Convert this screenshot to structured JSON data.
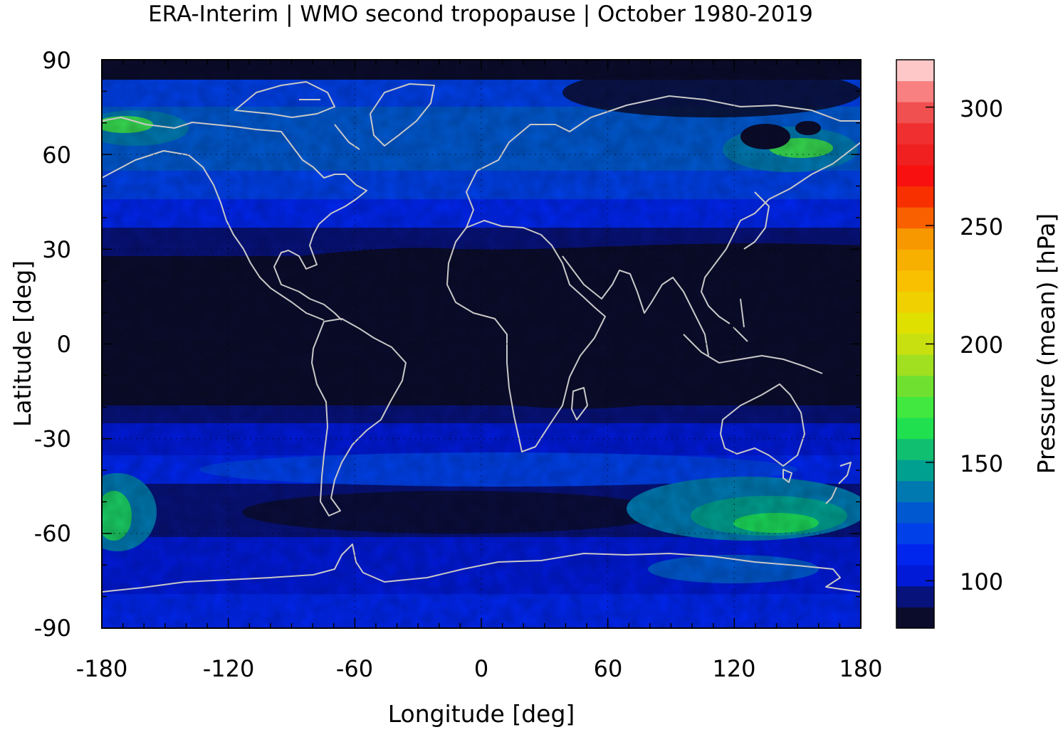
{
  "title": "ERA-Interim | WMO second tropopause | October 1980-2019",
  "map": {
    "xlabel": "Longitude [deg]",
    "ylabel": "Latitude [deg]",
    "xlim": [
      -180,
      180
    ],
    "ylim": [
      -90,
      90
    ],
    "xticks": [
      "-180",
      "-120",
      "-60",
      "0",
      "60",
      "120",
      "180"
    ],
    "yticks": [
      "90",
      "60",
      "30",
      "0",
      "-30",
      "-60",
      "-90"
    ],
    "grid": "dotted",
    "coastline_color": "#c8c8c8"
  },
  "colorbar": {
    "label": "Pressure (mean) [hPa]",
    "range": [
      80,
      320
    ],
    "ticks": [
      "100",
      "150",
      "200",
      "250",
      "300"
    ],
    "colors": [
      "#0b0c2c",
      "#07127a",
      "#001ad8",
      "#0026ee",
      "#0040e8",
      "#0058d0",
      "#0078b0",
      "#00a090",
      "#10c070",
      "#20e050",
      "#40e840",
      "#70e030",
      "#a0e020",
      "#c8e010",
      "#e0e000",
      "#f0d000",
      "#f8c000",
      "#f8b000",
      "#f89800",
      "#f86000",
      "#f83000",
      "#f81010",
      "#f02020",
      "#f03030",
      "#f05050",
      "#f88080",
      "#ffc8c8"
    ]
  },
  "chart_data": {
    "type": "heatmap",
    "title": "ERA-Interim | WMO second tropopause | October 1980-2019",
    "xlabel": "Longitude [deg]",
    "ylabel": "Latitude [deg]",
    "xlim": [
      -180,
      180
    ],
    "ylim": [
      -90,
      90
    ],
    "colorbar_label": "Pressure (mean) [hPa]",
    "colorbar_range": [
      80,
      320
    ],
    "zonal_mean_pressure_hPa": [
      {
        "lat": 90,
        "value": 85
      },
      {
        "lat": 80,
        "value": 95
      },
      {
        "lat": 70,
        "value": 115
      },
      {
        "lat": 60,
        "value": 120
      },
      {
        "lat": 50,
        "value": 110
      },
      {
        "lat": 40,
        "value": 102
      },
      {
        "lat": 30,
        "value": 92
      },
      {
        "lat": 20,
        "value": 82
      },
      {
        "lat": 10,
        "value": 80
      },
      {
        "lat": 0,
        "value": 80
      },
      {
        "lat": -10,
        "value": 80
      },
      {
        "lat": -20,
        "value": 85
      },
      {
        "lat": -30,
        "value": 100
      },
      {
        "lat": -40,
        "value": 108
      },
      {
        "lat": -50,
        "value": 95
      },
      {
        "lat": -60,
        "value": 112
      },
      {
        "lat": -70,
        "value": 105
      },
      {
        "lat": -80,
        "value": 100
      },
      {
        "lat": -90,
        "value": 100
      }
    ],
    "regional_maxima_hPa": [
      {
        "region": "North Pacific / Alaska (lon -180..-150, lat 60..75)",
        "value": 160
      },
      {
        "region": "Northeast Asia (lon 130..170, lat 55..70)",
        "value": 160
      },
      {
        "region": "Southwest Pacific (lon 120..180, lat -45..-65)",
        "value": 160
      },
      {
        "region": "South Pacific (lon -180..-160, lat -50..-65)",
        "value": 160
      }
    ]
  }
}
